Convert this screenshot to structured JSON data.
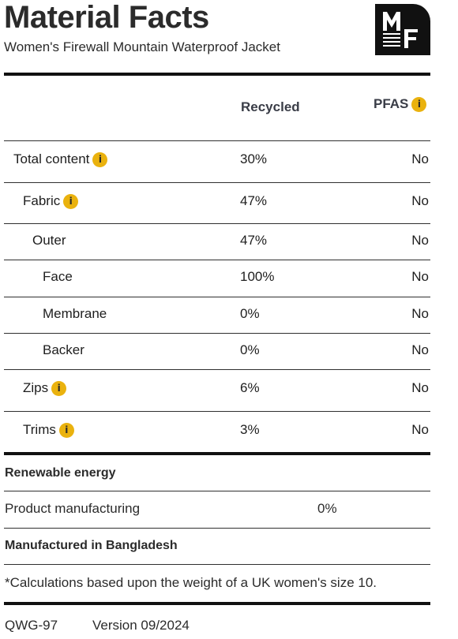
{
  "header": {
    "title": "Material Facts",
    "subtitle": "Women's Firewall Mountain Waterproof Jacket",
    "logo_text": "MF"
  },
  "columns": {
    "recycled": "Recycled",
    "pfas": "PFAS"
  },
  "rows": [
    {
      "name": "Total content",
      "recycled": "30%",
      "pfas": "No",
      "info": true,
      "indent": 0
    },
    {
      "name": "Fabric",
      "recycled": "47%",
      "pfas": "No",
      "info": true,
      "indent": 1
    },
    {
      "name": "Outer",
      "recycled": "47%",
      "pfas": "No",
      "info": false,
      "indent": 2
    },
    {
      "name": "Face",
      "recycled": "100%",
      "pfas": "No",
      "info": false,
      "indent": 3
    },
    {
      "name": "Membrane",
      "recycled": "0%",
      "pfas": "No",
      "info": false,
      "indent": 3
    },
    {
      "name": "Backer",
      "recycled": "0%",
      "pfas": "No",
      "info": false,
      "indent": 3
    },
    {
      "name": "Zips",
      "recycled": "6%",
      "pfas": "No",
      "info": true,
      "indent": 1
    },
    {
      "name": "Trims",
      "recycled": "3%",
      "pfas": "No",
      "info": true,
      "indent": 1
    }
  ],
  "info_glyph": "i",
  "renewable": {
    "title": "Renewable energy",
    "label": "Product manufacturing",
    "value": "0%"
  },
  "manufactured": "Manufactured in Bangladesh",
  "note": "*Calculations based upon the weight of a UK women's size 10.",
  "footer": {
    "code": "QWG-97",
    "version": "Version 09/2024"
  },
  "colors": {
    "info_badge": "#eab20e",
    "rules": "#111111",
    "logo_bg": "#111111"
  }
}
